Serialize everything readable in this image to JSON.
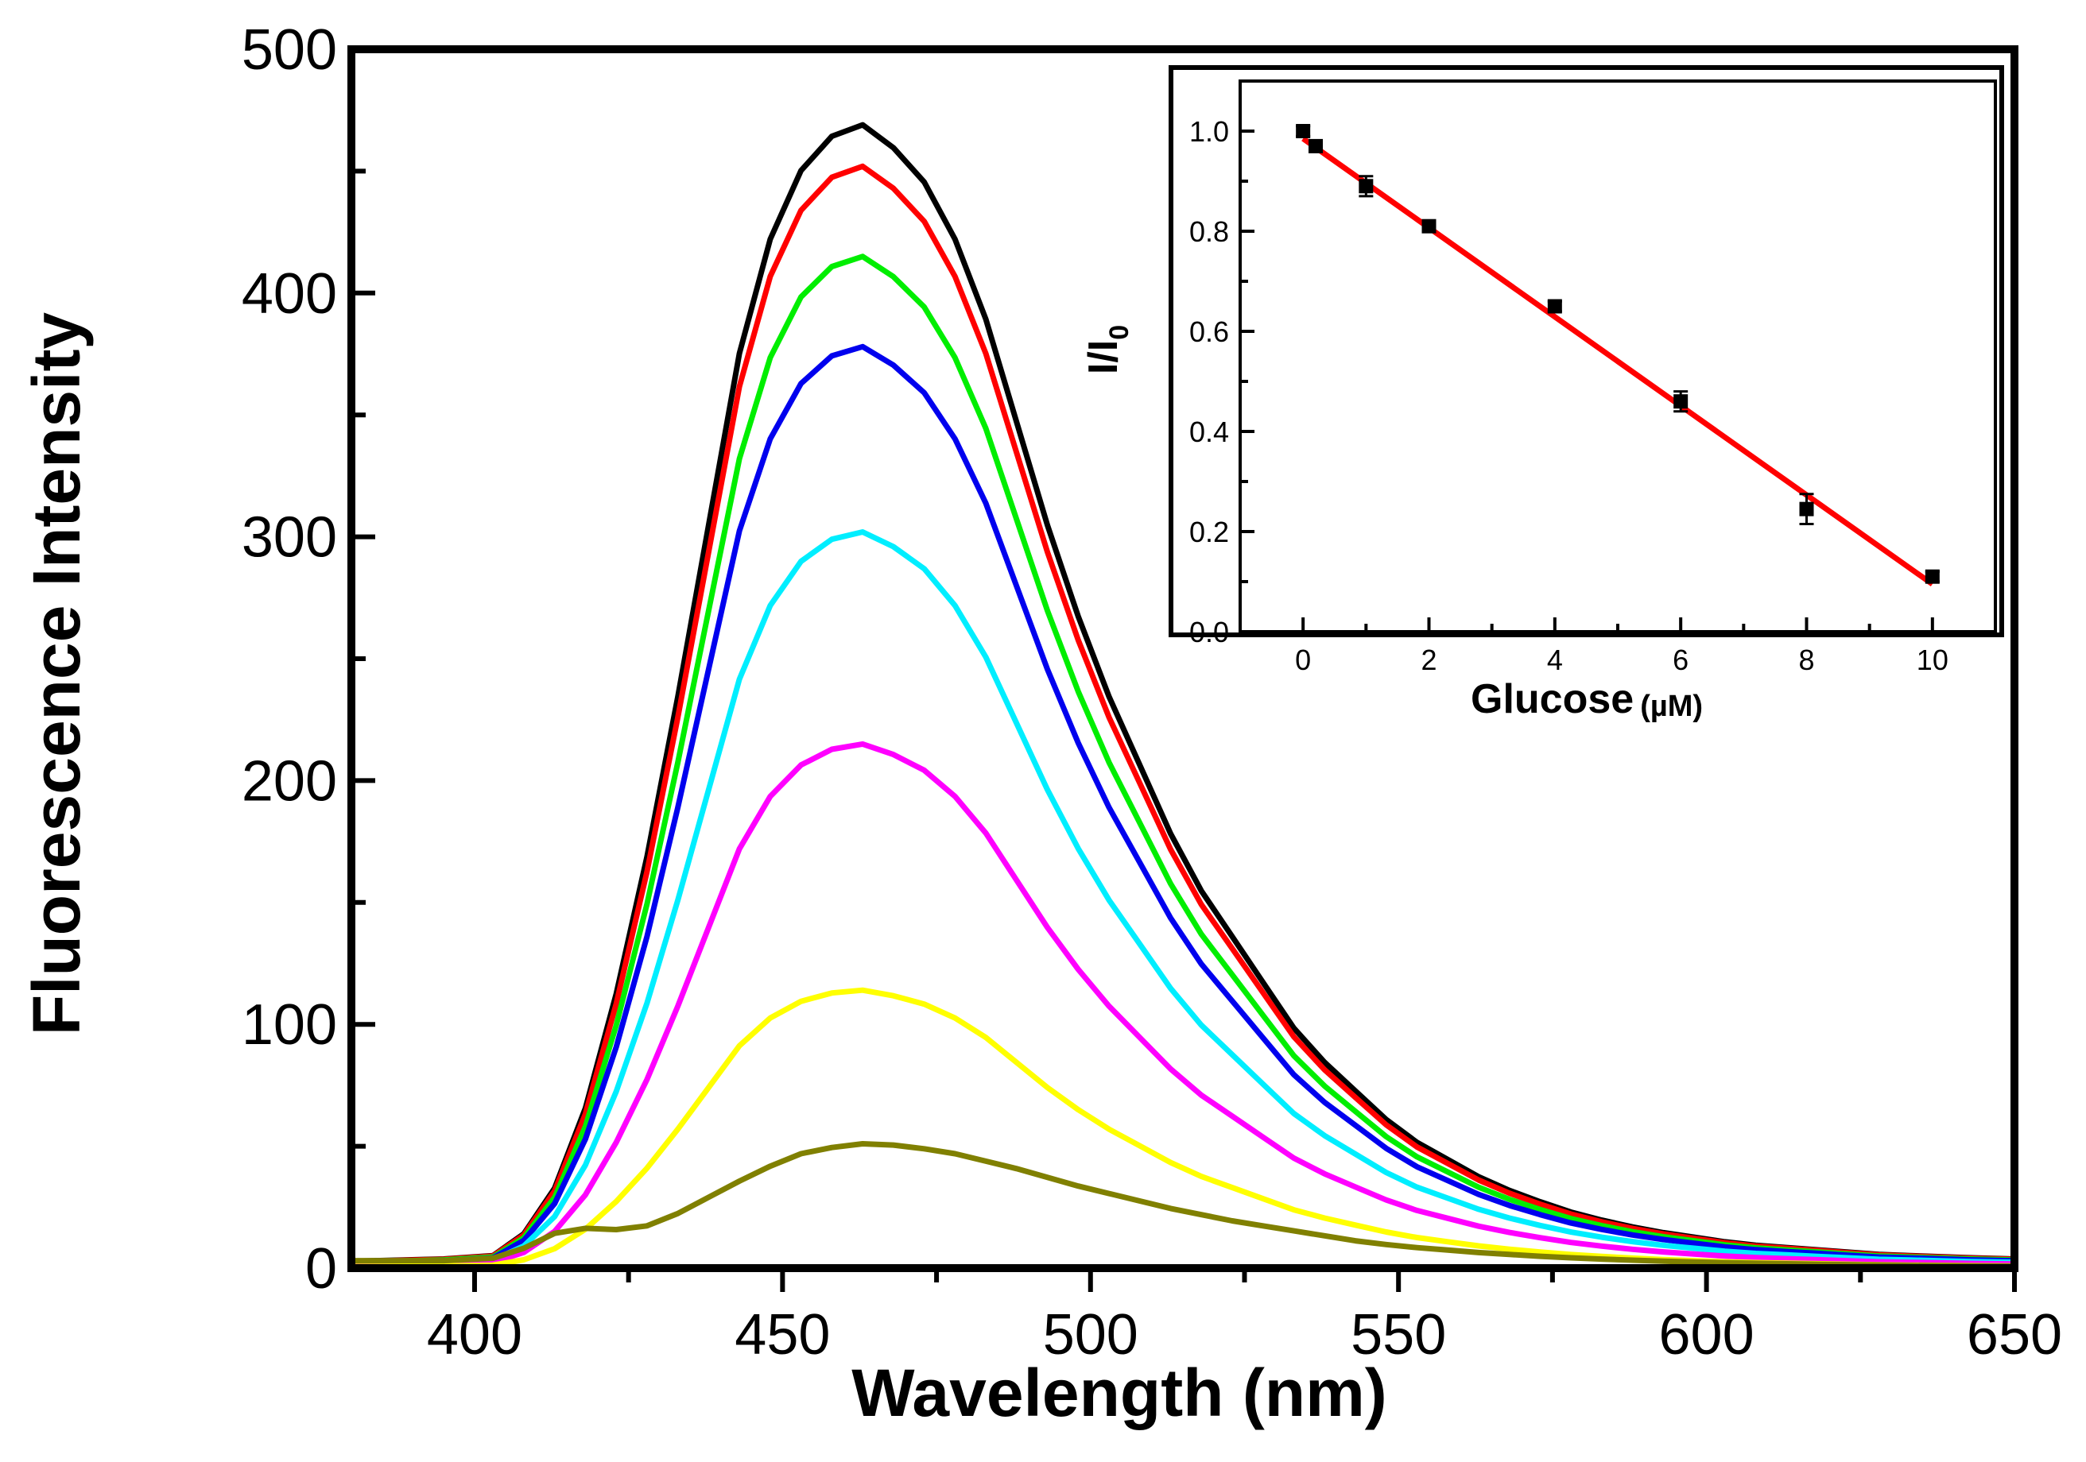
{
  "chart_data": [
    {
      "type": "line",
      "title": "",
      "xlabel": "Wavelength (nm)",
      "ylabel": "Fluorescence Intensity",
      "xlim": [
        380,
        650
      ],
      "ylim": [
        0,
        500
      ],
      "xticks": [
        400,
        450,
        500,
        550,
        600,
        650
      ],
      "yticks": [
        0,
        100,
        200,
        300,
        400,
        500
      ],
      "grid": false,
      "legend": "none",
      "x": [
        380,
        395,
        403,
        408,
        413,
        418,
        423,
        428,
        433,
        438,
        443,
        448,
        453,
        458,
        463,
        468,
        473,
        478,
        483,
        488,
        493,
        498,
        503,
        508,
        513,
        518,
        523,
        528,
        533,
        538,
        543,
        548,
        553,
        558,
        563,
        568,
        573,
        578,
        583,
        588,
        593,
        598,
        603,
        608,
        613,
        618,
        623,
        628,
        633,
        638,
        643,
        650
      ],
      "series": [
        {
          "color": "#000000",
          "peak": 469
        },
        {
          "color": "#ff0000",
          "peak": 452
        },
        {
          "color": "#00ee00",
          "peak": 415
        },
        {
          "color": "#0000ee",
          "peak": 378
        },
        {
          "color": "#00eeff",
          "peak": 302
        },
        {
          "color": "#ff00ff",
          "peak": 215
        },
        {
          "color": "#ffff00",
          "peak": 114
        },
        {
          "color": "#808000",
          "peak": 51
        }
      ],
      "profile": [
        0.006,
        0.008,
        0.011,
        0.03,
        0.07,
        0.14,
        0.24,
        0.36,
        0.5,
        0.65,
        0.8,
        0.9,
        0.96,
        0.99,
        1.0,
        0.98,
        0.95,
        0.9,
        0.83,
        0.74,
        0.65,
        0.57,
        0.5,
        0.44,
        0.38,
        0.33,
        0.29,
        0.25,
        0.21,
        0.18,
        0.155,
        0.13,
        0.11,
        0.095,
        0.08,
        0.068,
        0.058,
        0.049,
        0.042,
        0.036,
        0.031,
        0.027,
        0.023,
        0.02,
        0.018,
        0.016,
        0.014,
        0.012,
        0.011,
        0.01,
        0.009,
        0.008
      ],
      "olive_profile": [
        0.06,
        0.06,
        0.08,
        0.16,
        0.28,
        0.32,
        0.31,
        0.34,
        0.44,
        0.57,
        0.7,
        0.82,
        0.92,
        0.97,
        1.0,
        0.99,
        0.96,
        0.92,
        0.86,
        0.8,
        0.73,
        0.66,
        0.6,
        0.54,
        0.48,
        0.43,
        0.38,
        0.34,
        0.3,
        0.26,
        0.22,
        0.19,
        0.165,
        0.145,
        0.125,
        0.11,
        0.095,
        0.083,
        0.073,
        0.064,
        0.056,
        0.05,
        0.044,
        0.039,
        0.035,
        0.031,
        0.028,
        0.025,
        0.022,
        0.02,
        0.018,
        0.016
      ]
    },
    {
      "type": "scatter",
      "title": "",
      "xlabel": "Glucose",
      "xunit": "(µM)",
      "ylabel": "I/I",
      "ylabel_sub": "0",
      "xlim": [
        -1,
        11
      ],
      "ylim": [
        0,
        1.1
      ],
      "xticks": [
        0,
        2,
        4,
        6,
        8,
        10
      ],
      "yticks": [
        0.0,
        0.2,
        0.4,
        0.6,
        0.8,
        1.0
      ],
      "ytick_labels": [
        "0.0",
        "0.2",
        "0.4",
        "0.6",
        "0.8",
        "1.0"
      ],
      "points": [
        {
          "x": 0,
          "y": 1.0,
          "err": 0.01
        },
        {
          "x": 0.2,
          "y": 0.97,
          "err": 0.01
        },
        {
          "x": 1,
          "y": 0.89,
          "err": 0.02
        },
        {
          "x": 2,
          "y": 0.81,
          "err": 0.01
        },
        {
          "x": 4,
          "y": 0.65,
          "err": 0.01
        },
        {
          "x": 6,
          "y": 0.46,
          "err": 0.02
        },
        {
          "x": 8,
          "y": 0.245,
          "err": 0.03
        },
        {
          "x": 10,
          "y": 0.11,
          "err": 0.01
        }
      ],
      "fit": {
        "x": [
          0,
          10
        ],
        "y": [
          0.985,
          0.095
        ],
        "color": "#ff0000"
      },
      "marker_color": "#000000"
    }
  ]
}
